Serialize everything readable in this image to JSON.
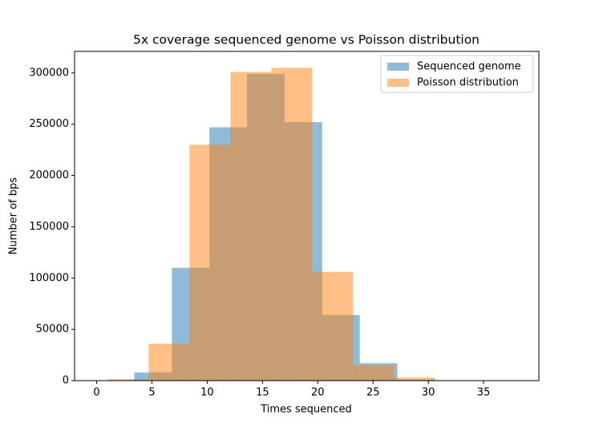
{
  "chart_data": {
    "type": "histogram",
    "title": "5x coverage sequenced genome vs Poisson distribution",
    "xlabel": "Times sequenced",
    "ylabel": "Number of bps",
    "series": [
      {
        "name": "Sequenced genome",
        "color": "#1f77b4",
        "bins": [
          3.4,
          6.8,
          10.2,
          13.6,
          17.0,
          20.4,
          23.8,
          27.2,
          30.6,
          34.0,
          37.4
        ],
        "values": [
          8000,
          110000,
          247000,
          299000,
          252000,
          64000,
          17000,
          1000,
          200,
          50
        ]
      },
      {
        "name": "Poisson distribution",
        "color": "#ff7f0e",
        "bins": [
          1.0,
          4.7,
          8.4,
          12.1,
          15.8,
          19.5,
          23.2,
          26.9,
          30.6
        ],
        "values": [
          1500,
          36000,
          230000,
          301000,
          305000,
          106000,
          15000,
          3000
        ]
      }
    ],
    "xlim": [
      -2,
      40
    ],
    "ylim": [
      0,
      321000
    ],
    "xticks": [
      0,
      5,
      10,
      15,
      20,
      25,
      30,
      35
    ],
    "yticks": [
      0,
      50000,
      100000,
      150000,
      200000,
      250000,
      300000
    ],
    "opacity": 0.5,
    "legend": "upper right"
  }
}
